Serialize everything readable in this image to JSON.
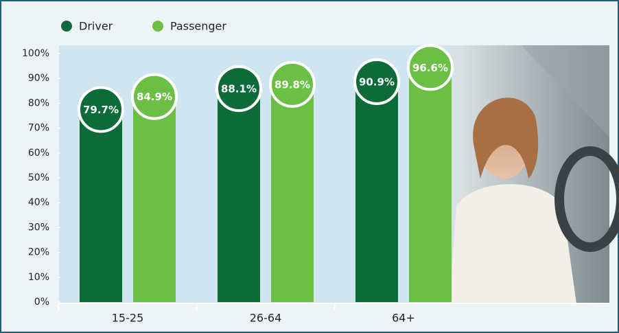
{
  "chart_data": {
    "type": "bar",
    "categories": [
      "15-25",
      "26-64",
      "64+"
    ],
    "series": [
      {
        "name": "Driver",
        "color": "#0d6b3a",
        "values": [
          79.7,
          88.1,
          90.9
        ],
        "value_labels": [
          "79.7%",
          "88.1%",
          "90.9%"
        ]
      },
      {
        "name": "Passenger",
        "color": "#6cbf45",
        "values": [
          84.9,
          89.8,
          96.6
        ],
        "value_labels": [
          "84.9%",
          "89.8%",
          "96.6%"
        ]
      }
    ],
    "ylim": [
      0,
      100
    ],
    "yticks": [
      {
        "value": 0,
        "label": "0%"
      },
      {
        "value": 10,
        "label": "10%"
      },
      {
        "value": 20,
        "label": "20%"
      },
      {
        "value": 30,
        "label": "30%"
      },
      {
        "value": 40,
        "label": "40%"
      },
      {
        "value": 50,
        "label": "50%"
      },
      {
        "value": 60,
        "label": "60%"
      },
      {
        "value": 70,
        "label": "70%"
      },
      {
        "value": 80,
        "label": "80%"
      },
      {
        "value": 90,
        "label": "90%"
      },
      {
        "value": 100,
        "label": "100%"
      }
    ],
    "legend": "top-left"
  }
}
